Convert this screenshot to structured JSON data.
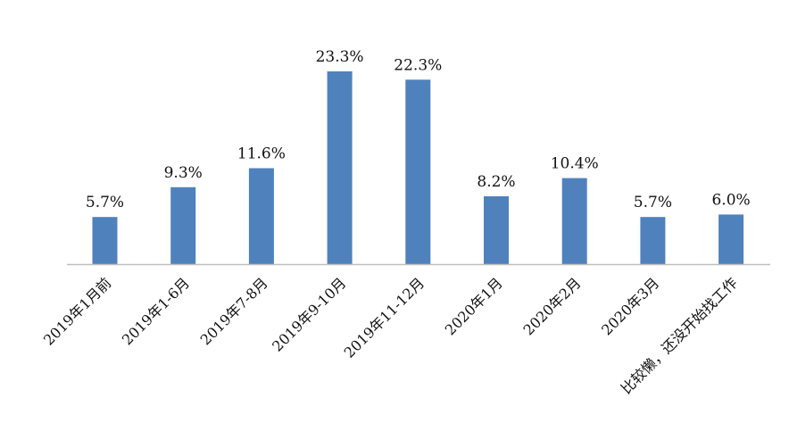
{
  "chart_data": {
    "type": "bar",
    "categories": [
      "2019年1月前",
      "2019年1-6月",
      "2019年7-8月",
      "2019年9-10月",
      "2019年11-12月",
      "2020年1月",
      "2020年2月",
      "2020年3月",
      "比较懒，还没开始找工作"
    ],
    "values": [
      5.7,
      9.3,
      11.6,
      23.3,
      22.3,
      8.2,
      10.4,
      5.7,
      6.0
    ],
    "data_labels": [
      "5.7%",
      "9.3%",
      "11.6%",
      "23.3%",
      "22.3%",
      "8.2%",
      "10.4%",
      "5.7%",
      "6.0%"
    ],
    "unit": "%",
    "ylim": [
      0,
      25
    ],
    "grid": false,
    "legend": "none",
    "colors": {
      "bar": "#4f81bd",
      "axis": "#bfbfbf",
      "text": "#111111"
    }
  }
}
